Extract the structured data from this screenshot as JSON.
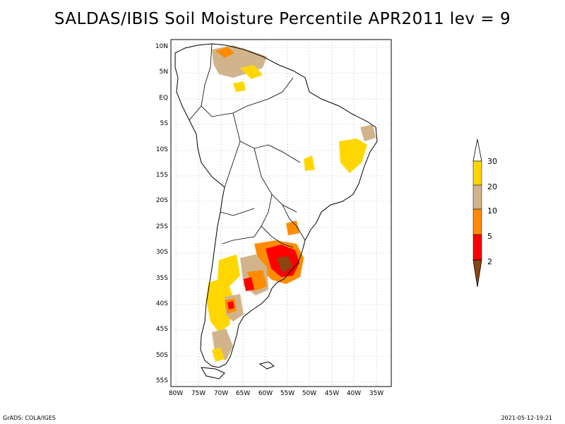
{
  "title": "SALDAS/IBIS Soil Moisture Percentile APR2011 lev = 9",
  "lat_labels": [
    "10N",
    "5N",
    "EQ",
    "5S",
    "10S",
    "15S",
    "20S",
    "25S",
    "30S",
    "35S",
    "40S",
    "45S",
    "50S",
    "55S"
  ],
  "lon_labels": [
    "80W",
    "75W",
    "70W",
    "65W",
    "60W",
    "55W",
    "50W",
    "45W",
    "40W",
    "35W"
  ],
  "colorbar": {
    "labels": [
      "30",
      "20",
      "10",
      "5",
      "2"
    ],
    "colors": {
      "top": "#ffffff",
      "c20_30": "#ffd700",
      "c10_20": "#d2b48c",
      "c5_10": "#ff8c00",
      "c2_5": "#ff0000",
      "bottom": "#8b4513"
    }
  },
  "footer": {
    "left": "GrADS: COLA/IGES",
    "right": "2021-05-12-19:21"
  }
}
